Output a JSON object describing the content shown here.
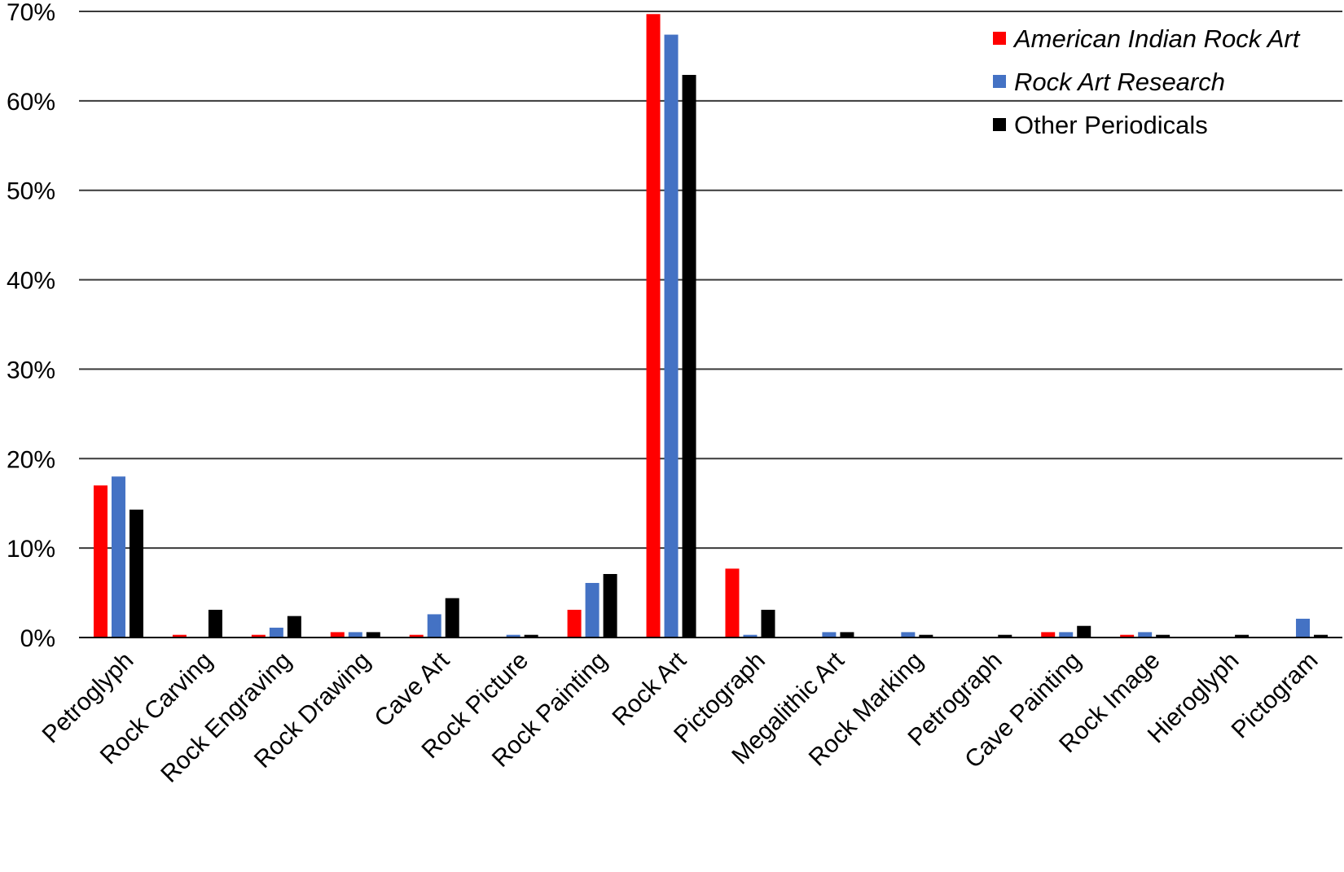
{
  "chart_data": {
    "type": "bar",
    "title": "",
    "xlabel": "",
    "ylabel": "",
    "ylim": [
      0,
      70
    ],
    "y_ticks": [
      0,
      10,
      20,
      30,
      40,
      50,
      60,
      70
    ],
    "y_tick_labels": [
      "0%",
      "10%",
      "20%",
      "30%",
      "40%",
      "50%",
      "60%",
      "70%"
    ],
    "grid": "horizontal",
    "legend_position": "top-right",
    "categories": [
      "Petroglyph",
      "Rock Carving",
      "Rock Engraving",
      "Rock Drawing",
      "Cave Art",
      "Rock Picture",
      "Rock Painting",
      "Rock Art",
      "Pictograph",
      "Megalithic Art",
      "Rock Marking",
      "Petrograph",
      "Cave Painting",
      "Rock Image",
      "Hieroglyph",
      "Pictogram"
    ],
    "series": [
      {
        "name": "American Indian Rock Art",
        "italic": true,
        "color": "#ff0000",
        "values": [
          17.0,
          0.3,
          0.3,
          0.6,
          0.3,
          0,
          3.1,
          69.7,
          7.7,
          0,
          0,
          0,
          0.6,
          0.3,
          0,
          0
        ]
      },
      {
        "name": "Rock Art Research",
        "italic": true,
        "color": "#4472c4",
        "values": [
          18.0,
          0,
          1.1,
          0.6,
          2.6,
          0.3,
          6.1,
          67.4,
          0.3,
          0.6,
          0.6,
          0,
          0.6,
          0.6,
          0,
          2.1
        ]
      },
      {
        "name": "Other Periodicals",
        "italic": false,
        "color": "#000000",
        "values": [
          14.3,
          3.1,
          2.4,
          0.6,
          4.4,
          0.3,
          7.1,
          62.9,
          3.1,
          0.6,
          0.3,
          0.3,
          1.3,
          0.3,
          0.3,
          0.3
        ]
      }
    ]
  }
}
